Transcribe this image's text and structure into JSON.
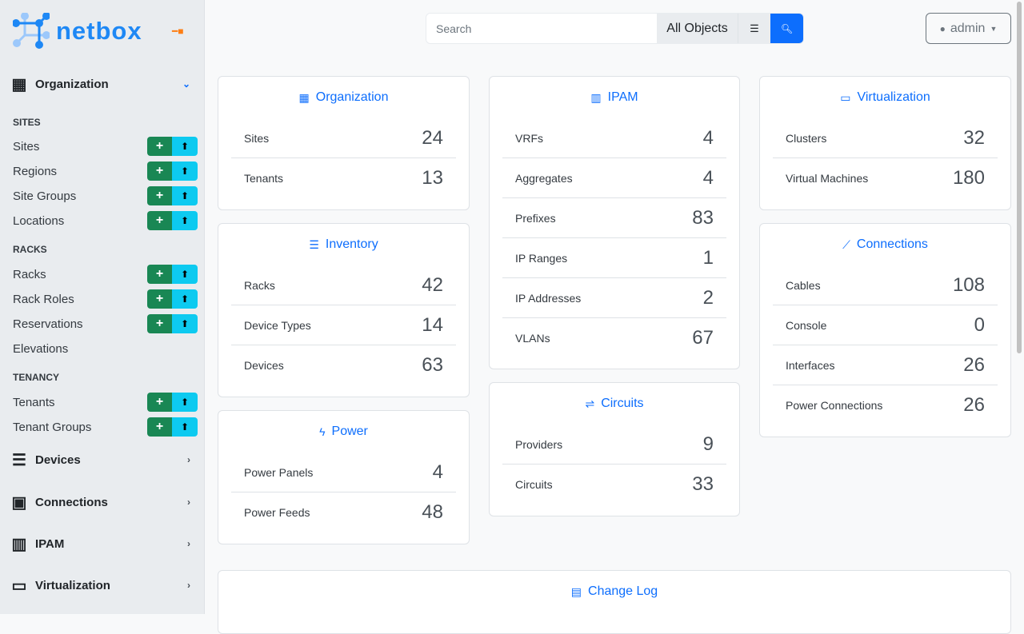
{
  "brand": {
    "name": "netbox",
    "accent": "#0d6efd"
  },
  "sidebar": {
    "groups": [
      {
        "label": "Organization",
        "icon": "building-icon",
        "expanded": true
      },
      {
        "label": "Devices",
        "icon": "server-icon"
      },
      {
        "label": "Connections",
        "icon": "ethernet-icon"
      },
      {
        "label": "IPAM",
        "icon": "ipam-icon"
      },
      {
        "label": "Virtualization",
        "icon": "monitor-icon"
      }
    ],
    "sections": [
      {
        "heading": "SITES",
        "items": [
          {
            "label": "Sites",
            "buttons": true
          },
          {
            "label": "Regions",
            "buttons": true
          },
          {
            "label": "Site Groups",
            "buttons": true
          },
          {
            "label": "Locations",
            "buttons": true
          }
        ]
      },
      {
        "heading": "RACKS",
        "items": [
          {
            "label": "Racks",
            "buttons": true
          },
          {
            "label": "Rack Roles",
            "buttons": true
          },
          {
            "label": "Reservations",
            "buttons": true
          },
          {
            "label": "Elevations",
            "buttons": false
          }
        ]
      },
      {
        "heading": "TENANCY",
        "items": [
          {
            "label": "Tenants",
            "buttons": true
          },
          {
            "label": "Tenant Groups",
            "buttons": true
          }
        ]
      }
    ]
  },
  "header": {
    "search_placeholder": "Search",
    "search_scope": "All Objects",
    "user": "admin"
  },
  "cards": [
    {
      "title": "Organization",
      "icon": "building-icon",
      "rows": [
        [
          "Sites",
          "24"
        ],
        [
          "Tenants",
          "13"
        ]
      ]
    },
    {
      "title": "Inventory",
      "icon": "server-icon",
      "rows": [
        [
          "Racks",
          "42"
        ],
        [
          "Device Types",
          "14"
        ],
        [
          "Devices",
          "63"
        ]
      ]
    },
    {
      "title": "Power",
      "icon": "lightning-icon",
      "rows": [
        [
          "Power Panels",
          "4"
        ],
        [
          "Power Feeds",
          "48"
        ]
      ]
    },
    {
      "title": "IPAM",
      "icon": "ipam-icon",
      "rows": [
        [
          "VRFs",
          "4"
        ],
        [
          "Aggregates",
          "4"
        ],
        [
          "Prefixes",
          "83"
        ],
        [
          "IP Ranges",
          "1"
        ],
        [
          "IP Addresses",
          "2"
        ],
        [
          "VLANs",
          "67"
        ]
      ]
    },
    {
      "title": "Circuits",
      "icon": "circuits-icon",
      "rows": [
        [
          "Providers",
          "9"
        ],
        [
          "Circuits",
          "33"
        ]
      ]
    },
    {
      "title": "Virtualization",
      "icon": "monitor-icon",
      "rows": [
        [
          "Clusters",
          "32"
        ],
        [
          "Virtual Machines",
          "180"
        ]
      ]
    },
    {
      "title": "Connections",
      "icon": "cable-icon",
      "rows": [
        [
          "Cables",
          "108"
        ],
        [
          "Console",
          "0"
        ],
        [
          "Interfaces",
          "26"
        ],
        [
          "Power Connections",
          "26"
        ]
      ]
    },
    {
      "title": "Change Log",
      "icon": "clipboard-clock-icon",
      "rows": []
    }
  ]
}
